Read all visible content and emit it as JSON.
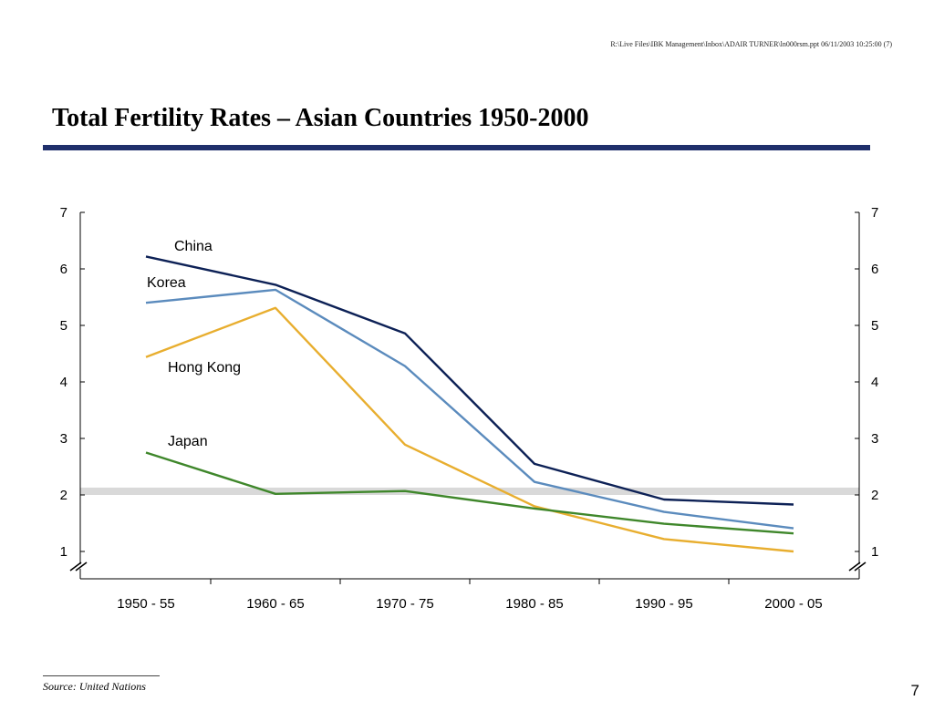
{
  "header": {
    "file_path": "R:\\Live Files\\IBK Management\\Inbox\\ADAIR TURNER\\ln000rsm.ppt 06/11/2003 10:25:00 (7)",
    "title": "Total Fertility Rates – Asian Countries 1950-2000"
  },
  "colors": {
    "title_rule": "#1f2f6b",
    "replacement_band": "#d9d9d9"
  },
  "chart_data": {
    "type": "line",
    "title": "",
    "xlabel": "",
    "ylabel": "",
    "categories": [
      "1950 - 55",
      "1960 - 65",
      "1970 - 75",
      "1980 - 85",
      "1990 - 95",
      "2000 - 05"
    ],
    "ylim": [
      1,
      7
    ],
    "yticks": [
      "1",
      "2",
      "3",
      "4",
      "5",
      "6",
      "7"
    ],
    "axis_break": true,
    "dual_y_axis": true,
    "reference_band": {
      "from": 2.0,
      "to": 2.13
    },
    "series": [
      {
        "name": "China",
        "color": "#0d2156",
        "values": [
          6.22,
          5.72,
          4.86,
          2.55,
          1.92,
          1.83
        ]
      },
      {
        "name": "Korea",
        "color": "#5b8bbd",
        "values": [
          5.4,
          5.63,
          4.28,
          2.23,
          1.7,
          1.41
        ]
      },
      {
        "name": "Hong Kong",
        "color": "#e8ae2f",
        "values": [
          4.44,
          5.31,
          2.89,
          1.8,
          1.22,
          1.0
        ]
      },
      {
        "name": "Japan",
        "color": "#3f872b",
        "values": [
          2.75,
          2.02,
          2.07,
          1.76,
          1.49,
          1.32
        ]
      }
    ]
  },
  "footer": {
    "source": "Source:  United Nations",
    "page_number": "7"
  }
}
